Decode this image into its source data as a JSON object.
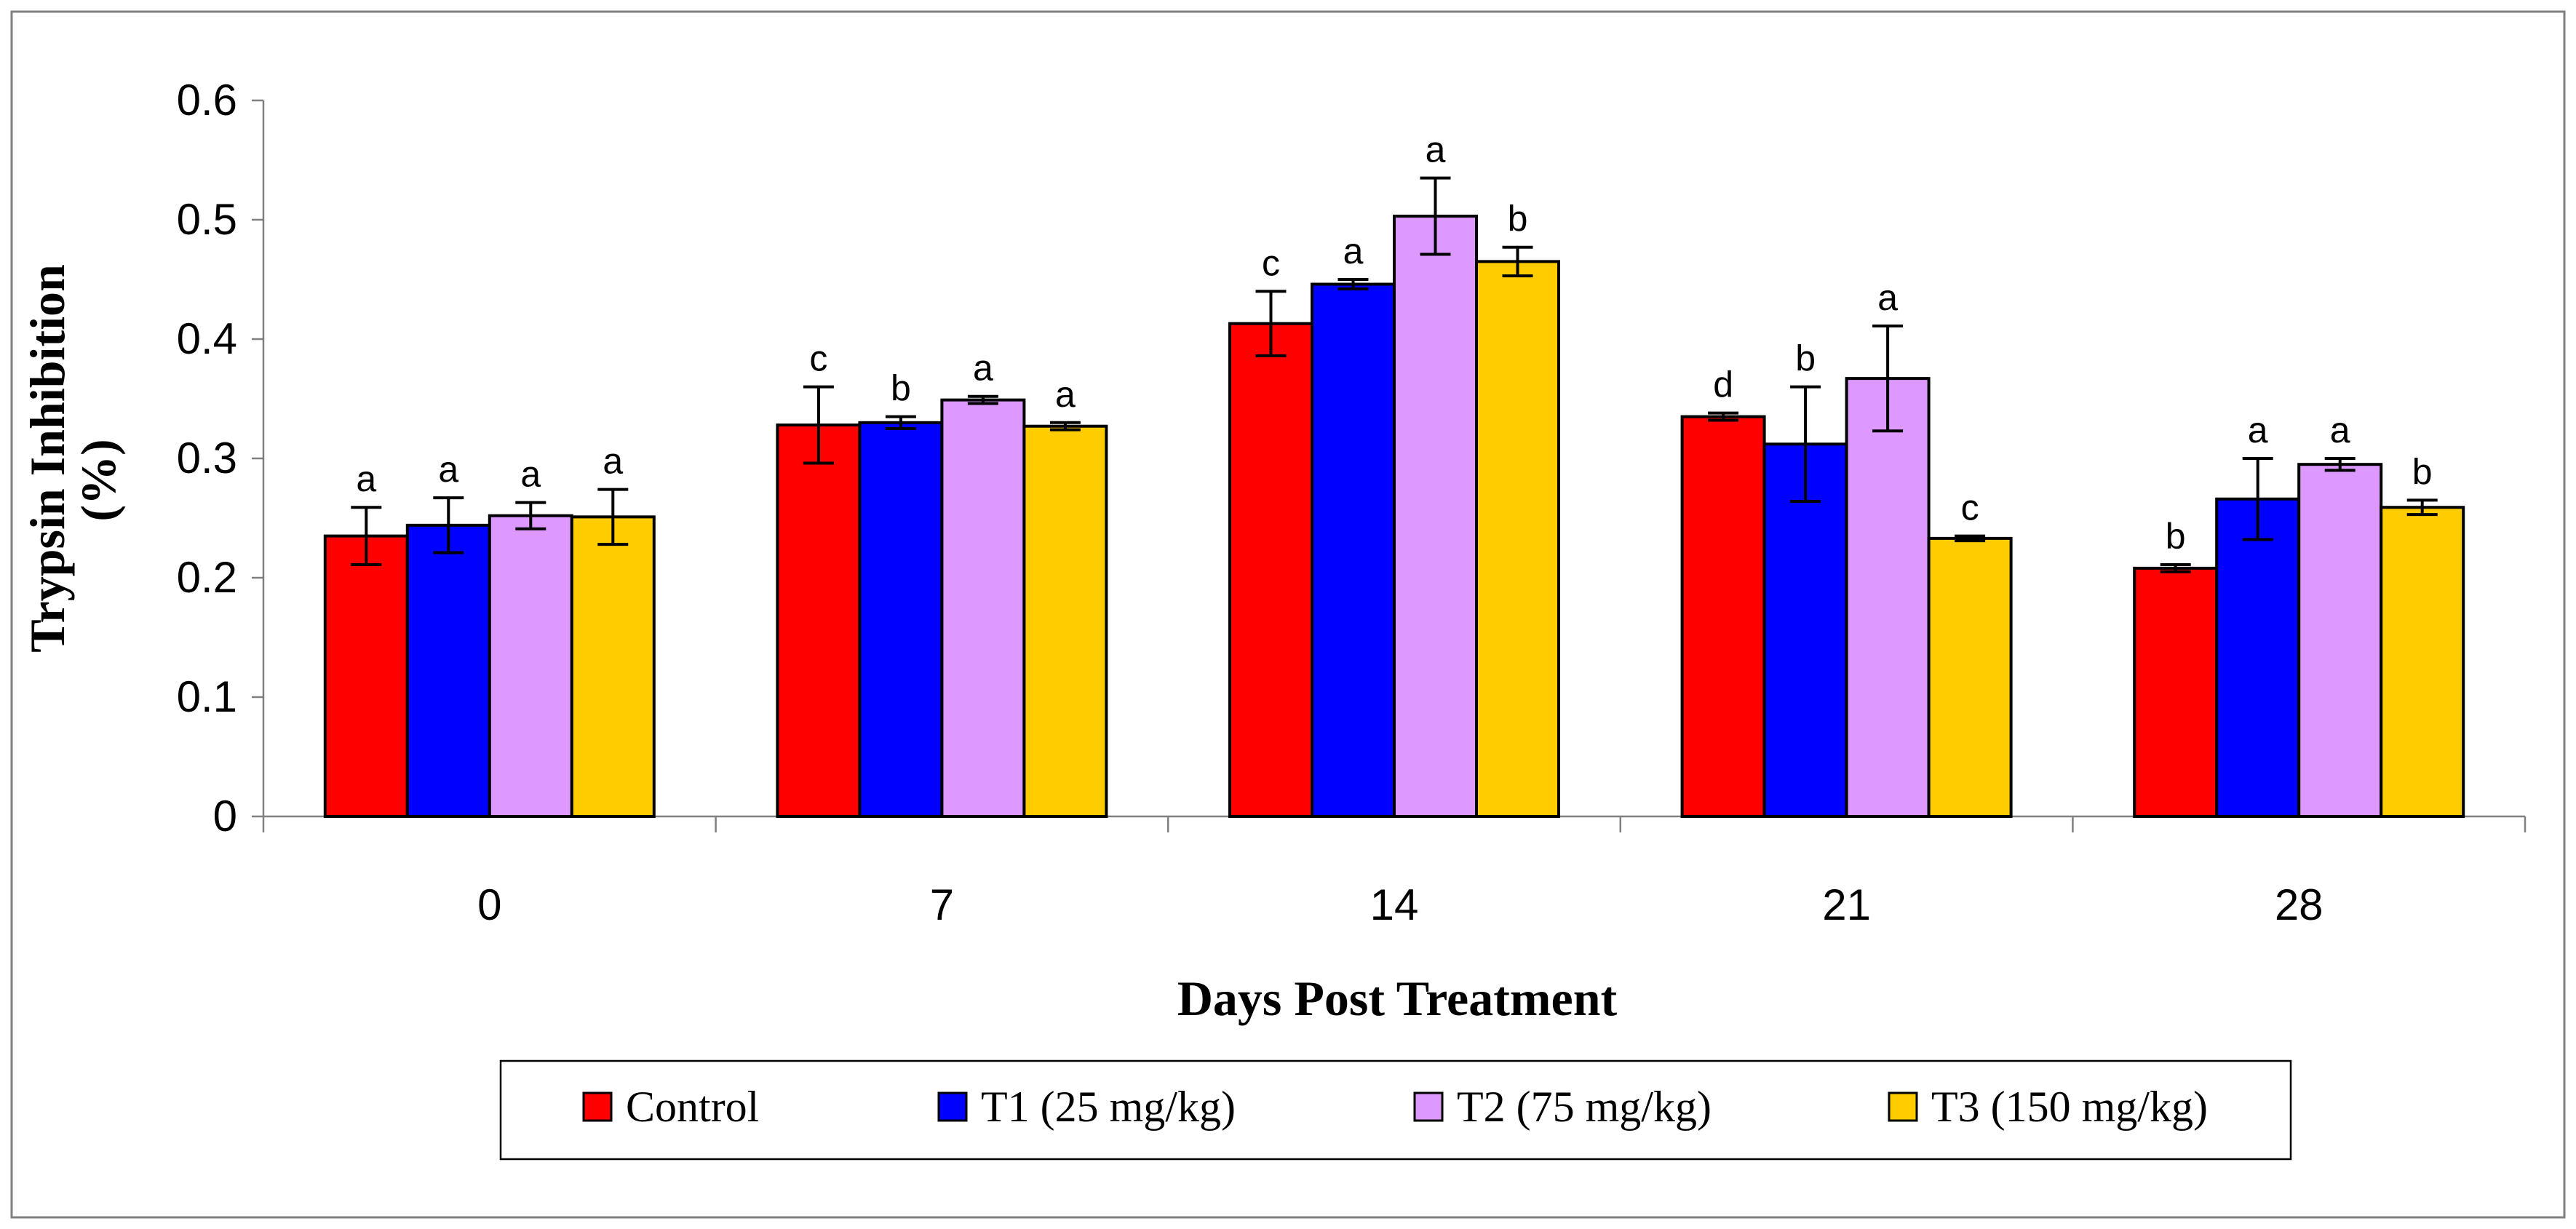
{
  "chart_data": {
    "type": "bar",
    "title": "",
    "xlabel": "Days Post Treatment",
    "ylabel_line1": "Trypsin Inhibition",
    "ylabel_line2": "(%)",
    "ylim": [
      0,
      0.6
    ],
    "yticks": [
      "0",
      "0.1",
      "0.2",
      "0.3",
      "0.4",
      "0.5",
      "0.6"
    ],
    "categories": [
      "0",
      "7",
      "14",
      "21",
      "28"
    ],
    "series": [
      {
        "name": "Control",
        "color": "#ff0000",
        "values": [
          0.235,
          0.328,
          0.413,
          0.335,
          0.208
        ],
        "errors": [
          0.024,
          0.032,
          0.027,
          0.003,
          0.003
        ],
        "labels": [
          "a",
          "c",
          "c",
          "d",
          "b"
        ]
      },
      {
        "name": "T1 (25 mg/kg)",
        "color": "#0000ff",
        "values": [
          0.244,
          0.33,
          0.446,
          0.312,
          0.266
        ],
        "errors": [
          0.023,
          0.005,
          0.004,
          0.048,
          0.034
        ],
        "labels": [
          "a",
          "b",
          "a",
          "b",
          "a"
        ]
      },
      {
        "name": "T2 (75 mg/kg)",
        "color": "#dd99ff",
        "values": [
          0.252,
          0.349,
          0.503,
          0.367,
          0.295
        ],
        "errors": [
          0.011,
          0.003,
          0.032,
          0.044,
          0.005
        ],
        "labels": [
          "a",
          "a",
          "a",
          "a",
          "a"
        ]
      },
      {
        "name": "T3 (150 mg/kg)",
        "color": "#ffcc00",
        "values": [
          0.251,
          0.327,
          0.465,
          0.233,
          0.259
        ],
        "errors": [
          0.023,
          0.003,
          0.012,
          0.002,
          0.006
        ],
        "labels": [
          "a",
          "a",
          "b",
          "c",
          "b"
        ]
      }
    ],
    "legend_position": "bottom"
  }
}
